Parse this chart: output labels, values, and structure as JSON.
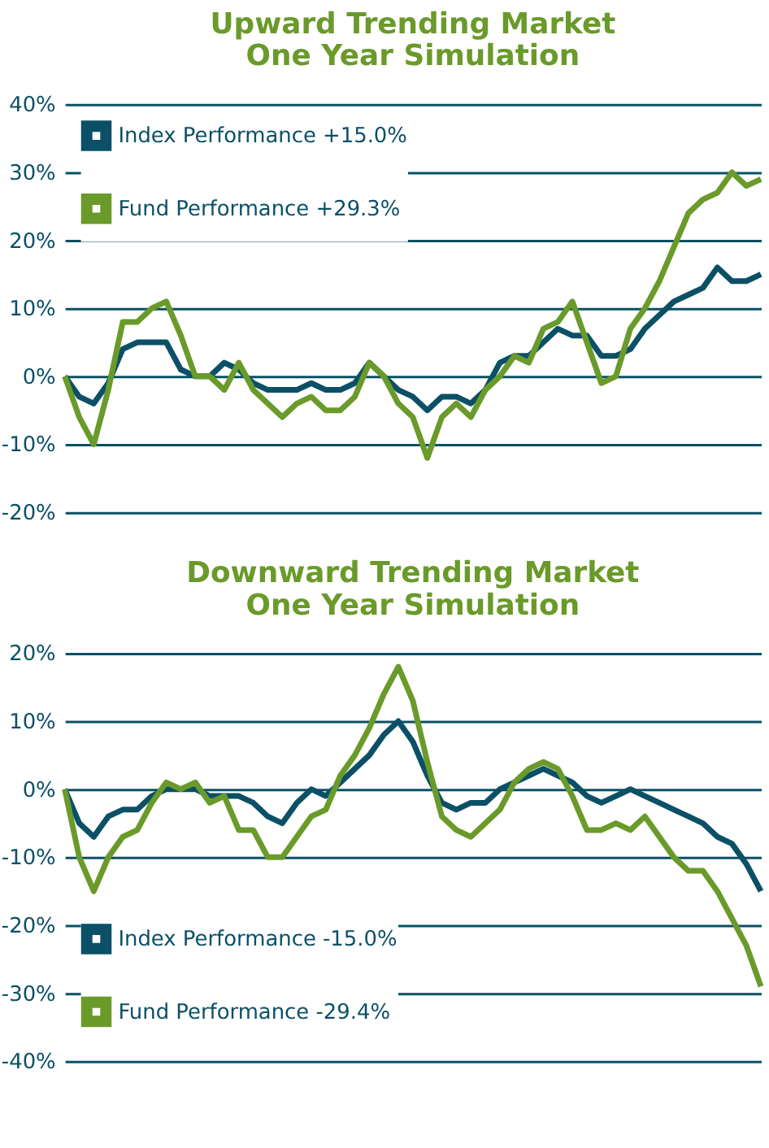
{
  "chart_data": [
    {
      "type": "line",
      "title": [
        "Upward Trending Market",
        "One Year Simulation"
      ],
      "categories": [
        null,
        null,
        null,
        null,
        null,
        null,
        null,
        null,
        null,
        null,
        null,
        null,
        null,
        null,
        null,
        null,
        null,
        null,
        null,
        null,
        null,
        null,
        null,
        null,
        null,
        null,
        null,
        null,
        null,
        null,
        null,
        null,
        null,
        null,
        null,
        null,
        null,
        null,
        null,
        null,
        null,
        null,
        null,
        null,
        null,
        null,
        null,
        null,
        null
      ],
      "series": [
        {
          "name": "Index Performance +15.0%",
          "color": "#0b5066",
          "values": [
            0,
            -3,
            -4,
            -1,
            4,
            5,
            5,
            5,
            1,
            0,
            0,
            2,
            1,
            -1,
            -2,
            -2,
            -2,
            -1,
            -2,
            -2,
            -1,
            2,
            0,
            -2,
            -3,
            -5,
            -3,
            -3,
            -4,
            -2,
            2,
            3,
            3,
            5,
            7,
            6,
            6,
            3,
            3,
            4,
            7,
            9,
            11,
            12,
            13,
            16,
            14,
            14,
            15
          ]
        },
        {
          "name": "Fund Performance +29.3%",
          "color": "#6a9a2a",
          "values": [
            0,
            -6,
            -10,
            -2,
            8,
            8,
            10,
            11,
            6,
            0,
            0,
            -2,
            2,
            -2,
            -4,
            -6,
            -4,
            -3,
            -5,
            -5,
            -3,
            2,
            0,
            -4,
            -6,
            -12,
            -6,
            -4,
            -6,
            -2,
            0,
            3,
            2,
            7,
            8,
            11,
            5,
            -1,
            0,
            7,
            10,
            14,
            19,
            24,
            26,
            27,
            30,
            28,
            29
          ]
        }
      ],
      "ylim": [
        -20,
        40
      ],
      "yticks": [
        {
          "value": -20,
          "label": "-20%"
        },
        {
          "value": -10,
          "label": "-10%"
        },
        {
          "value": 0,
          "label": "0%"
        },
        {
          "value": 10,
          "label": "10%"
        },
        {
          "value": 20,
          "label": "20%"
        },
        {
          "value": 30,
          "label": "30%"
        },
        {
          "value": 40,
          "label": "40%"
        }
      ],
      "grid": "y",
      "legend": "top left",
      "tick_labels": "y",
      "marker": "none",
      "line_style": "solid"
    },
    {
      "type": "line",
      "title": [
        "Downward Trending Market",
        "One Year Simulation"
      ],
      "categories": [
        null,
        null,
        null,
        null,
        null,
        null,
        null,
        null,
        null,
        null,
        null,
        null,
        null,
        null,
        null,
        null,
        null,
        null,
        null,
        null,
        null,
        null,
        null,
        null,
        null,
        null,
        null,
        null,
        null,
        null,
        null,
        null,
        null,
        null,
        null,
        null,
        null,
        null,
        null,
        null,
        null,
        null,
        null,
        null,
        null,
        null,
        null,
        null,
        null
      ],
      "series": [
        {
          "name": "Index Performance -15.0%",
          "color": "#0b5066",
          "values": [
            0,
            -5,
            -7,
            -4,
            -3,
            -3,
            -1,
            0,
            0,
            0,
            -1,
            -1,
            -1,
            -2,
            -4,
            -5,
            -2,
            0,
            -1,
            1,
            3,
            5,
            8,
            10,
            7,
            2,
            -2,
            -3,
            -2,
            -2,
            0,
            1,
            2,
            3,
            2,
            1,
            -1,
            -2,
            -1,
            0,
            -1,
            -2,
            -3,
            -4,
            -5,
            -7,
            -8,
            -11,
            -15
          ]
        },
        {
          "name": "Fund Performance -29.4%",
          "color": "#6a9a2a",
          "values": [
            0,
            -10,
            -15,
            -10,
            -7,
            -6,
            -2,
            1,
            0,
            1,
            -2,
            -1,
            -6,
            -6,
            -10,
            -10,
            -7,
            -4,
            -3,
            2,
            5,
            9,
            14,
            18,
            13,
            4,
            -4,
            -6,
            -7,
            -5,
            -3,
            1,
            3,
            4,
            3,
            -1,
            -6,
            -6,
            -5,
            -6,
            -4,
            -7,
            -10,
            -12,
            -12,
            -15,
            -19,
            -23,
            -29
          ]
        }
      ],
      "ylim": [
        -40,
        20
      ],
      "yticks": [
        {
          "value": -40,
          "label": "-40%"
        },
        {
          "value": -30,
          "label": "-30%"
        },
        {
          "value": -20,
          "label": "-20%"
        },
        {
          "value": -10,
          "label": "-10%"
        },
        {
          "value": 0,
          "label": "0%"
        },
        {
          "value": 10,
          "label": "10%"
        },
        {
          "value": 20,
          "label": "20%"
        }
      ],
      "grid": "y",
      "legend": "bottom left",
      "tick_labels": "y",
      "marker": "none",
      "line_style": "solid"
    }
  ]
}
